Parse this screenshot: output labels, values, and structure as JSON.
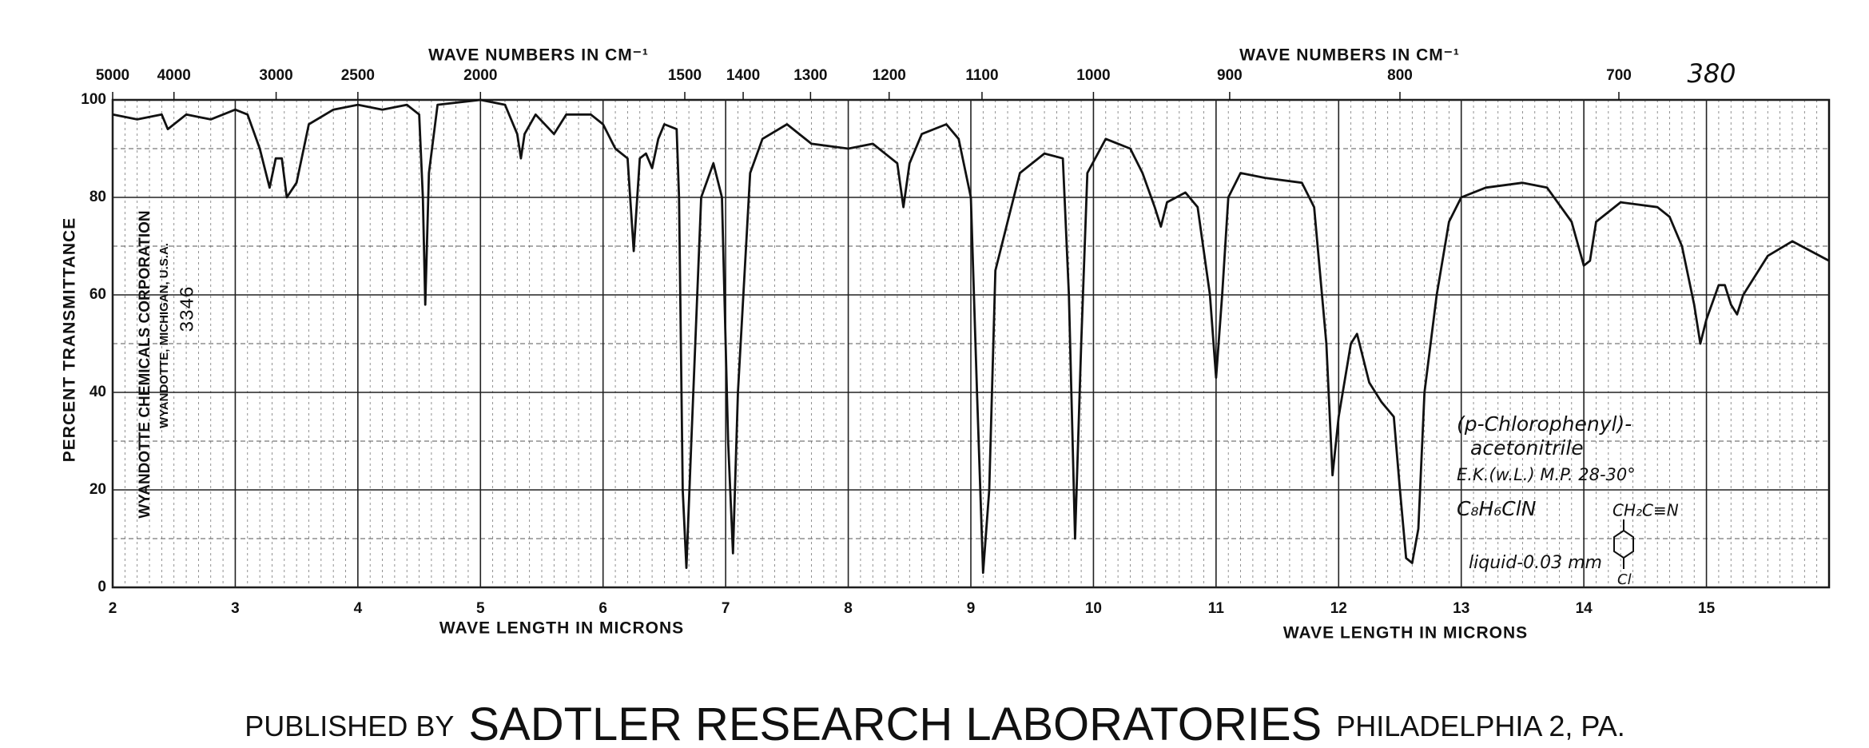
{
  "chart_data": {
    "type": "line",
    "color": "#111111",
    "ylabel": "PERCENT TRANSMITTANCE",
    "xlabel": [
      "WAVE LENGTH IN MICRONS",
      "WAVE LENGTH IN MICRONS"
    ],
    "top_axis": {
      "label": [
        "WAVE NUMBERS IN CM⁻¹",
        "WAVE NUMBERS IN CM⁻¹"
      ],
      "ticks": [
        5000,
        4000,
        3000,
        2500,
        2000,
        1500,
        1400,
        1300,
        1200,
        1100,
        1000,
        900,
        800,
        700
      ]
    },
    "xlim": [
      2,
      16
    ],
    "xticks": [
      2,
      3,
      4,
      5,
      6,
      7,
      8,
      9,
      10,
      11,
      12,
      13,
      14,
      15
    ],
    "ylim": [
      0,
      100
    ],
    "yticks": [
      0,
      20,
      40,
      60,
      80,
      100
    ],
    "grid": true,
    "x": [
      2.0,
      2.2,
      2.4,
      2.45,
      2.6,
      2.8,
      2.9,
      3.0,
      3.1,
      3.2,
      3.28,
      3.33,
      3.38,
      3.42,
      3.5,
      3.6,
      3.8,
      4.0,
      4.2,
      4.4,
      4.5,
      4.53,
      4.55,
      4.58,
      4.65,
      5.0,
      5.2,
      5.3,
      5.33,
      5.36,
      5.45,
      5.6,
      5.7,
      5.9,
      6.0,
      6.1,
      6.2,
      6.25,
      6.3,
      6.35,
      6.4,
      6.45,
      6.5,
      6.6,
      6.62,
      6.65,
      6.68,
      6.72,
      6.8,
      6.9,
      6.97,
      7.02,
      7.06,
      7.1,
      7.2,
      7.3,
      7.5,
      7.7,
      8.0,
      8.2,
      8.4,
      8.45,
      8.5,
      8.6,
      8.8,
      8.9,
      9.0,
      9.05,
      9.1,
      9.15,
      9.2,
      9.3,
      9.4,
      9.6,
      9.75,
      9.8,
      9.85,
      9.9,
      9.95,
      10.1,
      10.3,
      10.4,
      10.5,
      10.55,
      10.6,
      10.75,
      10.85,
      10.95,
      11.0,
      11.05,
      11.1,
      11.2,
      11.4,
      11.7,
      11.8,
      11.9,
      11.95,
      12.0,
      12.1,
      12.15,
      12.25,
      12.35,
      12.45,
      12.5,
      12.55,
      12.6,
      12.65,
      12.7,
      12.8,
      12.9,
      13.0,
      13.2,
      13.5,
      13.7,
      13.9,
      14.0,
      14.05,
      14.1,
      14.3,
      14.6,
      14.7,
      14.8,
      14.9,
      14.95,
      15.0,
      15.1,
      15.15,
      15.2,
      15.25,
      15.3,
      15.5,
      15.7,
      16.0
    ],
    "values": [
      97,
      96,
      97,
      94,
      97,
      96,
      97,
      98,
      97,
      90,
      82,
      88,
      88,
      80,
      83,
      95,
      98,
      99,
      98,
      99,
      97,
      80,
      58,
      85,
      99,
      100,
      99,
      93,
      88,
      93,
      97,
      93,
      97,
      97,
      95,
      90,
      88,
      69,
      88,
      89,
      86,
      92,
      95,
      94,
      80,
      20,
      4,
      30,
      80,
      87,
      80,
      30,
      7,
      40,
      85,
      92,
      95,
      91,
      90,
      91,
      87,
      78,
      87,
      93,
      95,
      92,
      80,
      40,
      3,
      20,
      65,
      75,
      85,
      89,
      88,
      60,
      10,
      50,
      85,
      92,
      90,
      85,
      78,
      74,
      79,
      81,
      78,
      60,
      43,
      60,
      80,
      85,
      84,
      83,
      78,
      50,
      23,
      35,
      50,
      52,
      42,
      38,
      35,
      20,
      6,
      5,
      12,
      40,
      60,
      75,
      80,
      82,
      83,
      82,
      75,
      66,
      67,
      75,
      79,
      78,
      76,
      70,
      58,
      50,
      55,
      62,
      62,
      58,
      56,
      60,
      68,
      71,
      67
    ],
    "corner_number": "380",
    "sidebar": [
      "WYANDOTTE CHEMICALS CORPORATION",
      "WYANDOTTE, MICHIGAN, U.S.A.",
      "3346"
    ],
    "annotations": [
      "(p-Chlorophenyl)-",
      "acetonitrile",
      "E.K.(w.L.) M.P. 28-30°",
      "C₈H₆ClN",
      "CH₂C≡N",
      "Cl",
      "liquid-0.03 mm"
    ],
    "footer": [
      "PUBLISHED BY",
      "SADTLER RESEARCH LABORATORIES",
      "PHILADELPHIA 2, PA."
    ]
  }
}
